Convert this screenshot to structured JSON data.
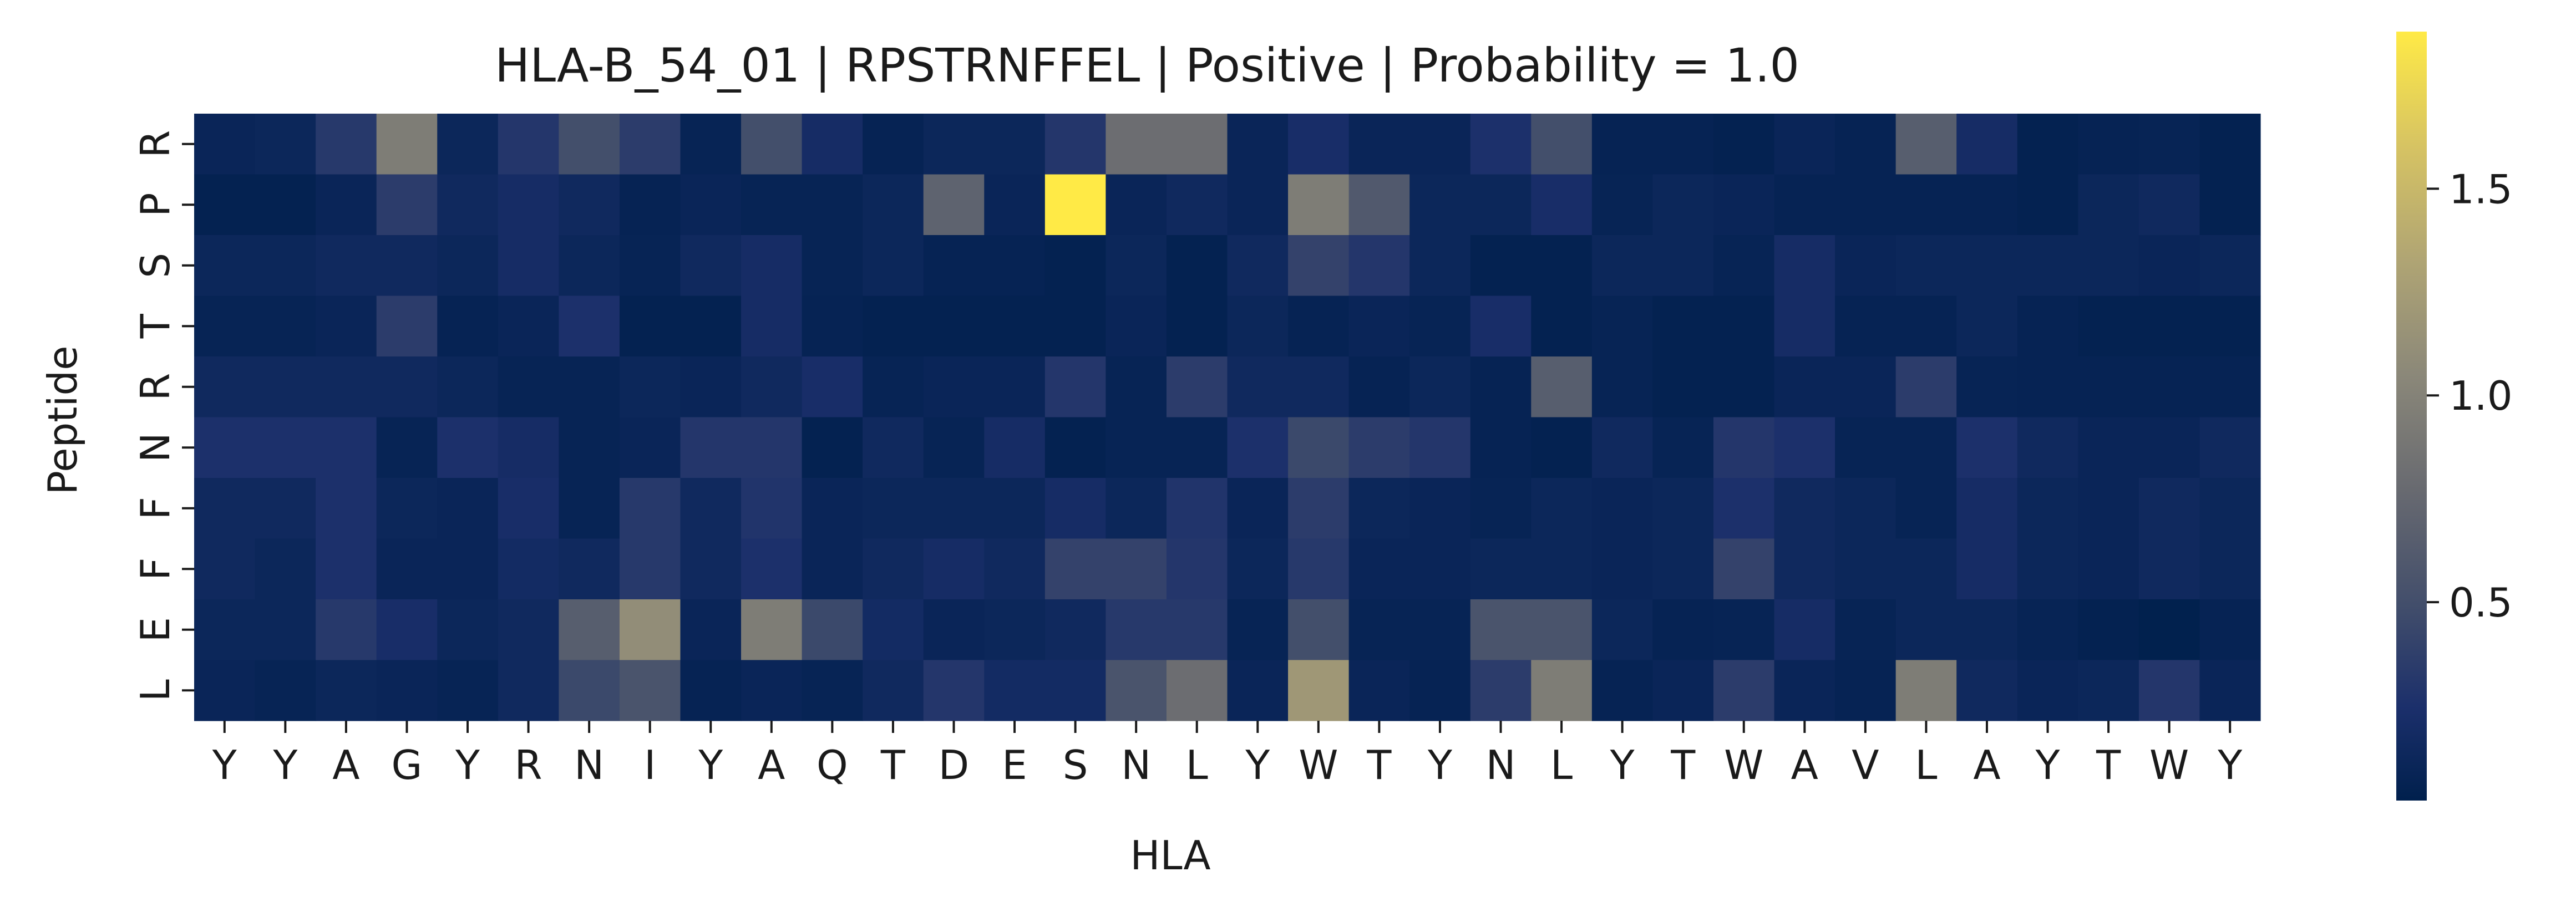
{
  "chart_data": {
    "type": "heatmap",
    "title": "HLA-B_54_01 | RPSTRNFFEL | Positive | Probability = 1.0",
    "xlabel": "HLA",
    "ylabel": "Peptide",
    "x_categories": [
      "Y",
      "Y",
      "A",
      "G",
      "Y",
      "R",
      "N",
      "I",
      "Y",
      "A",
      "Q",
      "T",
      "D",
      "E",
      "S",
      "N",
      "L",
      "Y",
      "W",
      "T",
      "Y",
      "N",
      "L",
      "Y",
      "T",
      "W",
      "A",
      "V",
      "L",
      "A",
      "Y",
      "T",
      "W",
      "Y"
    ],
    "y_categories": [
      "R",
      "P",
      "S",
      "T",
      "R",
      "N",
      "F",
      "F",
      "E",
      "L"
    ],
    "colormap": "cividis",
    "value_range": [
      0.02,
      1.88
    ],
    "colorbar_ticks": [
      "0.5",
      "1.0",
      "1.5"
    ],
    "colorbar_tick_values": [
      0.5,
      1.0,
      1.5
    ],
    "values": [
      [
        0.1,
        0.12,
        0.32,
        0.95,
        0.12,
        0.3,
        0.5,
        0.35,
        0.08,
        0.5,
        0.2,
        0.07,
        0.12,
        0.12,
        0.3,
        0.8,
        0.8,
        0.1,
        0.22,
        0.1,
        0.1,
        0.25,
        0.5,
        0.07,
        0.07,
        0.05,
        0.1,
        0.07,
        0.65,
        0.2,
        0.05,
        0.07,
        0.08,
        0.05
      ],
      [
        0.05,
        0.05,
        0.1,
        0.35,
        0.15,
        0.2,
        0.15,
        0.07,
        0.1,
        0.08,
        0.08,
        0.12,
        0.7,
        0.1,
        1.88,
        0.1,
        0.15,
        0.1,
        0.95,
        0.6,
        0.12,
        0.12,
        0.22,
        0.08,
        0.12,
        0.1,
        0.07,
        0.07,
        0.07,
        0.07,
        0.05,
        0.12,
        0.15,
        0.05
      ],
      [
        0.12,
        0.12,
        0.15,
        0.15,
        0.12,
        0.2,
        0.12,
        0.08,
        0.15,
        0.2,
        0.08,
        0.12,
        0.07,
        0.07,
        0.05,
        0.12,
        0.05,
        0.15,
        0.4,
        0.3,
        0.12,
        0.05,
        0.05,
        0.12,
        0.12,
        0.08,
        0.2,
        0.1,
        0.12,
        0.12,
        0.12,
        0.12,
        0.1,
        0.12
      ],
      [
        0.08,
        0.08,
        0.1,
        0.35,
        0.07,
        0.1,
        0.25,
        0.05,
        0.05,
        0.2,
        0.07,
        0.05,
        0.05,
        0.05,
        0.05,
        0.1,
        0.05,
        0.12,
        0.07,
        0.1,
        0.08,
        0.22,
        0.05,
        0.08,
        0.05,
        0.05,
        0.2,
        0.07,
        0.07,
        0.12,
        0.07,
        0.05,
        0.05,
        0.05
      ],
      [
        0.15,
        0.15,
        0.15,
        0.15,
        0.12,
        0.08,
        0.08,
        0.12,
        0.1,
        0.15,
        0.22,
        0.08,
        0.1,
        0.1,
        0.3,
        0.08,
        0.35,
        0.15,
        0.15,
        0.07,
        0.12,
        0.07,
        0.65,
        0.08,
        0.05,
        0.05,
        0.1,
        0.1,
        0.35,
        0.08,
        0.07,
        0.07,
        0.07,
        0.07
      ],
      [
        0.25,
        0.25,
        0.25,
        0.08,
        0.25,
        0.2,
        0.08,
        0.1,
        0.3,
        0.3,
        0.05,
        0.15,
        0.08,
        0.2,
        0.05,
        0.08,
        0.08,
        0.25,
        0.45,
        0.35,
        0.3,
        0.07,
        0.05,
        0.15,
        0.08,
        0.3,
        0.25,
        0.08,
        0.08,
        0.25,
        0.15,
        0.1,
        0.1,
        0.15
      ],
      [
        0.15,
        0.15,
        0.25,
        0.12,
        0.1,
        0.22,
        0.08,
        0.32,
        0.15,
        0.28,
        0.1,
        0.12,
        0.12,
        0.12,
        0.2,
        0.12,
        0.28,
        0.1,
        0.35,
        0.12,
        0.1,
        0.08,
        0.12,
        0.1,
        0.12,
        0.25,
        0.15,
        0.12,
        0.08,
        0.2,
        0.12,
        0.1,
        0.15,
        0.12
      ],
      [
        0.15,
        0.12,
        0.25,
        0.1,
        0.1,
        0.18,
        0.15,
        0.32,
        0.15,
        0.25,
        0.1,
        0.15,
        0.2,
        0.15,
        0.4,
        0.4,
        0.3,
        0.12,
        0.32,
        0.1,
        0.1,
        0.12,
        0.12,
        0.1,
        0.12,
        0.4,
        0.15,
        0.12,
        0.12,
        0.2,
        0.12,
        0.1,
        0.15,
        0.12
      ],
      [
        0.12,
        0.12,
        0.32,
        0.22,
        0.12,
        0.15,
        0.65,
        1.1,
        0.1,
        0.95,
        0.45,
        0.18,
        0.1,
        0.12,
        0.15,
        0.32,
        0.32,
        0.08,
        0.5,
        0.08,
        0.08,
        0.55,
        0.55,
        0.12,
        0.07,
        0.08,
        0.2,
        0.08,
        0.12,
        0.12,
        0.08,
        0.05,
        0.03,
        0.07
      ],
      [
        0.1,
        0.08,
        0.12,
        0.1,
        0.08,
        0.15,
        0.45,
        0.55,
        0.07,
        0.1,
        0.08,
        0.15,
        0.3,
        0.18,
        0.18,
        0.55,
        0.8,
        0.1,
        1.2,
        0.1,
        0.07,
        0.35,
        0.95,
        0.07,
        0.1,
        0.35,
        0.1,
        0.07,
        0.95,
        0.15,
        0.1,
        0.12,
        0.3,
        0.1
      ]
    ]
  }
}
